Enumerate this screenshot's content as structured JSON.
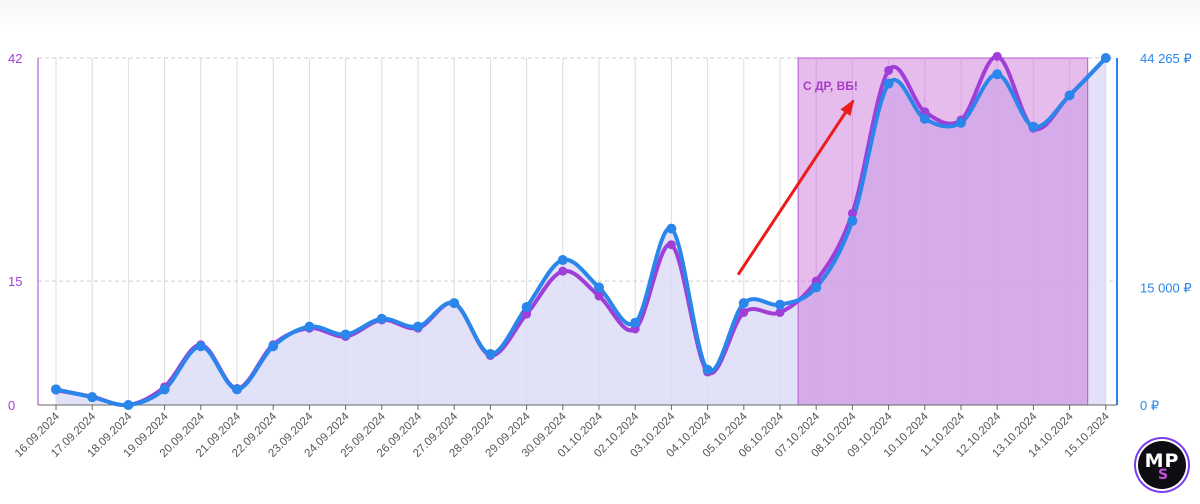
{
  "colors": {
    "series_count": "#a03fd8",
    "series_revenue": "#2a86ea",
    "area_fill": "#dcdcf6",
    "highlight_fill": "#c86ad6",
    "arrow": "#ea1c1c",
    "axis_left": "#a03fd8",
    "axis_right": "#2a86ea"
  },
  "logo": {
    "text": "MP",
    "sub": "S"
  },
  "chart_data": {
    "type": "line",
    "title": "",
    "xlabel": "",
    "ylabel": "",
    "categories": [
      "16.09.2024",
      "17.09.2024",
      "18.09.2024",
      "19.09.2024",
      "20.09.2024",
      "21.09.2024",
      "22.09.2024",
      "23.09.2024",
      "24.09.2024",
      "25.09.2024",
      "26.09.2024",
      "27.09.2024",
      "28.09.2024",
      "29.09.2024",
      "30.09.2024",
      "01.10.2024",
      "02.10.2024",
      "03.10.2024",
      "04.10.2024",
      "05.10.2024",
      "06.10.2024",
      "07.10.2024",
      "08.10.2024",
      "09.10.2024",
      "10.10.2024",
      "11.10.2024",
      "12.10.2024",
      "13.10.2024",
      "14.10.2024",
      "15.10.2024"
    ],
    "series": [
      {
        "axis": "left",
        "values": [
          1.8,
          1.0,
          0.0,
          2.2,
          7.3,
          2.0,
          7.3,
          9.3,
          8.3,
          10.3,
          9.3,
          12.3,
          6.0,
          11.0,
          16.2,
          13.2,
          9.2,
          19.4,
          4.0,
          11.2,
          11.2,
          15.0,
          23.2,
          40.5,
          35.5,
          34.5,
          42.2,
          33.5,
          37.5,
          42.0
        ]
      },
      {
        "axis": "right",
        "values": [
          2000,
          1000,
          0,
          2000,
          7500,
          2000,
          7500,
          10000,
          9000,
          11000,
          10000,
          13000,
          6500,
          12500,
          18500,
          15000,
          10500,
          22500,
          4500,
          13000,
          12800,
          15000,
          23500,
          41000,
          36500,
          36000,
          42200,
          35500,
          39500,
          44265
        ]
      }
    ],
    "left_axis": {
      "ylim": [
        0,
        42
      ],
      "ticks": [
        "0",
        "15",
        "42"
      ]
    },
    "right_axis": {
      "ylim": [
        0,
        44265
      ],
      "ticks": [
        "0 ₽",
        "15 000 ₽",
        "44 265 ₽"
      ]
    },
    "highlight": {
      "from": "07.10.2024",
      "to": "14.10.2024"
    },
    "annotation": {
      "text": "С ДР, ВБ!",
      "arrow_from": [
        "05.10.2024",
        15.9
      ],
      "arrow_to": [
        "09.10.2024",
        36.7
      ]
    },
    "grid": true,
    "legend": "none"
  }
}
